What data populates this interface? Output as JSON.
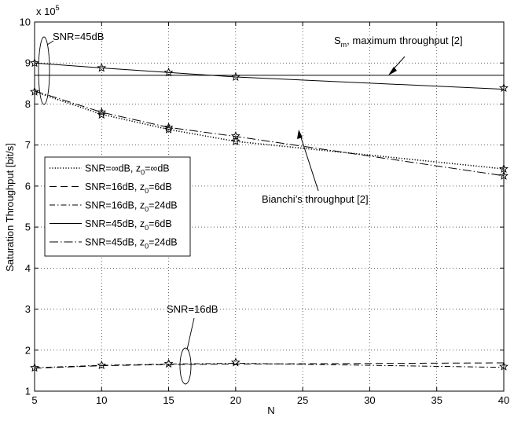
{
  "chart_data": {
    "type": "line",
    "xlabel": "N",
    "ylabel": "Saturation Throughput [bit/s]",
    "y_multiplier": "x 10",
    "y_multiplier_exp": "5",
    "xlim": [
      5,
      40
    ],
    "ylim": [
      1,
      10
    ],
    "xticks": [
      5,
      10,
      15,
      20,
      25,
      30,
      35,
      40
    ],
    "yticks": [
      1,
      2,
      3,
      4,
      5,
      6,
      7,
      8,
      9,
      10
    ],
    "grid": true,
    "legend_position": "left",
    "x": [
      5,
      10,
      15,
      20,
      40
    ],
    "series": [
      {
        "name": "SNR=∞dB, z0=∞dB",
        "name_parts": [
          "SNR=∞dB, z",
          "0",
          "=∞dB"
        ],
        "style": "dotted",
        "values": [
          8.3,
          7.75,
          7.38,
          7.09,
          6.42
        ]
      },
      {
        "name": "SNR=16dB, z0=6dB",
        "name_parts": [
          "SNR=16dB, z",
          "0",
          "=6dB"
        ],
        "style": "dashed",
        "values": [
          1.56,
          1.62,
          1.65,
          1.66,
          1.69
        ]
      },
      {
        "name": "SNR=16dB, z0=24dB",
        "name_parts": [
          "SNR=16dB, z",
          "0",
          "=24dB"
        ],
        "style": "dashdot",
        "values": [
          1.57,
          1.63,
          1.66,
          1.68,
          1.58
        ]
      },
      {
        "name": "SNR=45dB, z0=6dB",
        "name_parts": [
          "SNR=45dB, z",
          "0",
          "=6dB"
        ],
        "style": "solid",
        "values": [
          9.0,
          8.88,
          8.77,
          8.66,
          8.36
        ]
      },
      {
        "name": "SNR=45dB, z0=24dB",
        "name_parts": [
          "SNR=45dB, z",
          "0",
          "=24dB"
        ],
        "style": "longdashdot",
        "values": [
          8.32,
          7.8,
          7.43,
          7.21,
          6.25
        ]
      }
    ],
    "markers": [
      {
        "x": 5,
        "y": 9.0
      },
      {
        "x": 10,
        "y": 8.88
      },
      {
        "x": 15,
        "y": 8.77
      },
      {
        "x": 20,
        "y": 8.66
      },
      {
        "x": 40,
        "y": 8.39
      },
      {
        "x": 5,
        "y": 8.3
      },
      {
        "x": 10,
        "y": 7.8
      },
      {
        "x": 10,
        "y": 7.74
      },
      {
        "x": 15,
        "y": 7.43
      },
      {
        "x": 15,
        "y": 7.38
      },
      {
        "x": 20,
        "y": 7.22
      },
      {
        "x": 20,
        "y": 7.09
      },
      {
        "x": 40,
        "y": 6.42
      },
      {
        "x": 40,
        "y": 6.25
      },
      {
        "x": 5,
        "y": 1.57
      },
      {
        "x": 10,
        "y": 1.63
      },
      {
        "x": 15,
        "y": 1.67
      },
      {
        "x": 20,
        "y": 1.7
      },
      {
        "x": 40,
        "y": 1.6
      }
    ],
    "reference_line": {
      "label": "Sm, maximum throughput [2]",
      "value": 8.7
    },
    "annotations": {
      "snr45": "SNR=45dB",
      "snr16": "SNR=16dB",
      "sm_prefix": "S",
      "sm_sub": "m",
      "sm_suffix": ", maximum throughput [2]",
      "bianchi": "Bianchi’s throughput [2]"
    }
  }
}
